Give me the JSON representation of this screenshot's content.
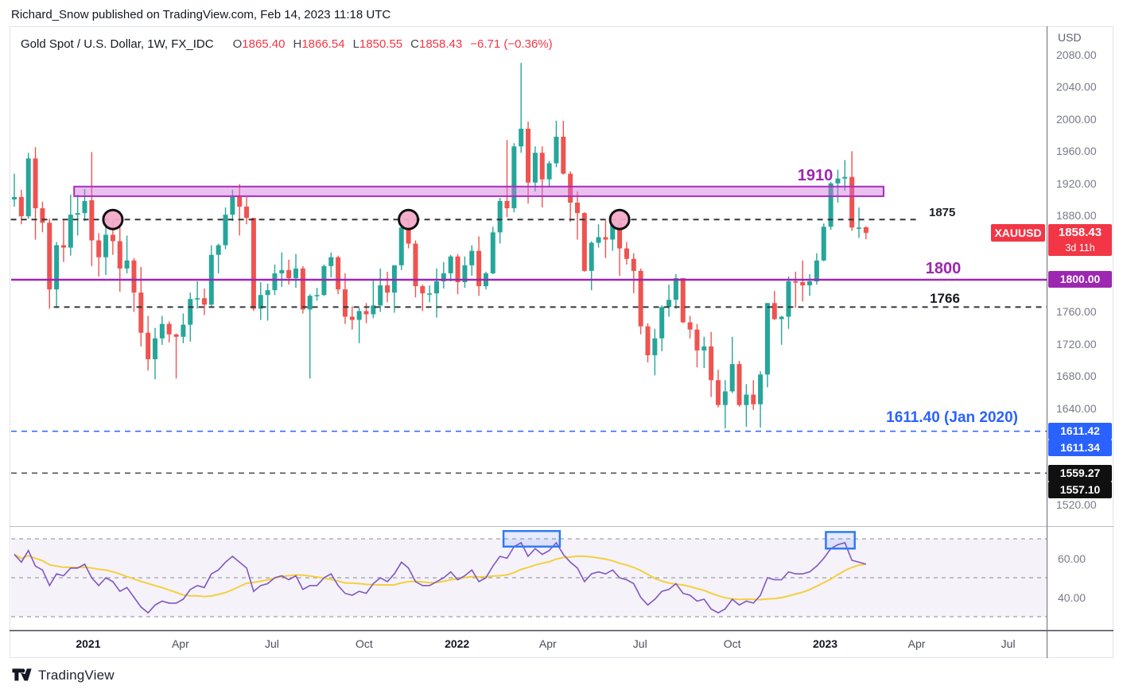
{
  "header": {
    "published_line": "Richard_Snow published on TradingView.com, Feb 14, 2023 11:18 UTC"
  },
  "footer": {
    "brand": "TradingView"
  },
  "legend": {
    "symbol_title": "Gold Spot / U.S. Dollar, 1W, FX_IDC",
    "o_label": "O",
    "open": "1865.40",
    "h_label": "H",
    "high": "1866.54",
    "l_label": "L",
    "low": "1850.55",
    "c_label": "C",
    "close": "1858.43",
    "change": "−6.71 (−0.36%)"
  },
  "annotations": {
    "zone_label": "1910",
    "resistance_label": "1875",
    "support_label": "1800",
    "support2_label": "1766",
    "blue_label": "1611.40 (Jan 2020)"
  },
  "badges": {
    "symbol": "XAUUSD",
    "last_price": "1858.43",
    "countdown": "3d 11h",
    "level_1800": "1800.00",
    "blue_1": "1611.42",
    "blue_2": "1611.34",
    "black_1": "1559.27",
    "black_2": "1557.10"
  },
  "axis": {
    "currency": "USD",
    "price_ticks": [
      {
        "label": "2080.00",
        "price": 2080
      },
      {
        "label": "2040.00",
        "price": 2040
      },
      {
        "label": "2000.00",
        "price": 2000
      },
      {
        "label": "1960.00",
        "price": 1960
      },
      {
        "label": "1920.00",
        "price": 1920
      },
      {
        "label": "1880.00",
        "price": 1880
      },
      {
        "label": "1760.00",
        "price": 1760
      },
      {
        "label": "1720.00",
        "price": 1720
      },
      {
        "label": "1680.00",
        "price": 1680
      },
      {
        "label": "1640.00",
        "price": 1640
      },
      {
        "label": "1520.00",
        "price": 1520
      }
    ],
    "rsi_ticks": [
      "60.00",
      "40.00"
    ],
    "time_ticks": [
      {
        "label": "2021",
        "week_index": 10.5,
        "bold": true
      },
      {
        "label": "Apr",
        "week_index": 23.6,
        "bold": false
      },
      {
        "label": "Jul",
        "week_index": 36.6,
        "bold": false
      },
      {
        "label": "Oct",
        "week_index": 49.7,
        "bold": false
      },
      {
        "label": "2022",
        "week_index": 62.9,
        "bold": true
      },
      {
        "label": "Apr",
        "week_index": 75.8,
        "bold": false
      },
      {
        "label": "Jul",
        "week_index": 88.9,
        "bold": false
      },
      {
        "label": "Oct",
        "week_index": 102.0,
        "bold": false
      },
      {
        "label": "2023",
        "week_index": 115.2,
        "bold": true
      },
      {
        "label": "Apr",
        "week_index": 128.2,
        "bold": false
      },
      {
        "label": "Jul",
        "week_index": 141.2,
        "bold": false
      }
    ]
  },
  "colors": {
    "up": "#26a69a",
    "down": "#ef5350",
    "widget_border": "#e0e3eb",
    "pane_separator": "#b8bcc6",
    "pane_separator_dark": "#434651",
    "axis_line": "#6a6d78",
    "zone_fill": "rgba(208,116,218,0.45)",
    "zone_border": "#aa2cc0",
    "circle_fill": "#f2abc9",
    "rsi_line": "#7e57c2",
    "rsi_ma": "#f3d03e",
    "rsi_band_fill": "rgba(126,87,194,0.08)",
    "rsi_level": "#868a97",
    "box_fill": "rgba(41,98,255,0.12)",
    "box_border": "#3179f3",
    "badge_red": "#f23645",
    "badge_purple": "#9c27b0",
    "badge_blue": "#2962ff",
    "badge_black": "#101010"
  },
  "chart_data": [
    {
      "type": "candlestick",
      "title": "Gold Spot / U.S. Dollar",
      "symbol": "XAUUSD",
      "exchange": "FX_IDC",
      "timeframe": "1W",
      "start_date": "2020-10-19",
      "interval": "1 week",
      "ylim": [
        1500,
        2095
      ],
      "last_close": 1858.43,
      "ohlc": [
        [
          1900,
          1932,
          1891,
          1903
        ],
        [
          1903,
          1912,
          1869,
          1879
        ],
        [
          1879,
          1958,
          1876,
          1951
        ],
        [
          1951,
          1965,
          1850,
          1889
        ],
        [
          1889,
          1897,
          1859,
          1871
        ],
        [
          1871,
          1876,
          1764,
          1788
        ],
        [
          1788,
          1847,
          1765,
          1843
        ],
        [
          1843,
          1875,
          1822,
          1840
        ],
        [
          1840,
          1906,
          1830,
          1881
        ],
        [
          1881,
          1906,
          1855,
          1883
        ],
        [
          1883,
          1913,
          1873,
          1898
        ],
        [
          1899,
          1959,
          1817,
          1849
        ],
        [
          1849,
          1858,
          1804,
          1828
        ],
        [
          1828,
          1875,
          1806,
          1856
        ],
        [
          1856,
          1878,
          1831,
          1848
        ],
        [
          1848,
          1866,
          1785,
          1814
        ],
        [
          1814,
          1855,
          1808,
          1824
        ],
        [
          1824,
          1827,
          1760,
          1784
        ],
        [
          1784,
          1816,
          1717,
          1734
        ],
        [
          1734,
          1755,
          1687,
          1701
        ],
        [
          1701,
          1740,
          1676,
          1727
        ],
        [
          1727,
          1755,
          1719,
          1745
        ],
        [
          1745,
          1748,
          1722,
          1732
        ],
        [
          1732,
          1733,
          1677,
          1729
        ],
        [
          1729,
          1758,
          1721,
          1744
        ],
        [
          1744,
          1784,
          1723,
          1776
        ],
        [
          1776,
          1798,
          1764,
          1777
        ],
        [
          1777,
          1789,
          1756,
          1769
        ],
        [
          1769,
          1843,
          1765,
          1831
        ],
        [
          1831,
          1845,
          1808,
          1843
        ],
        [
          1843,
          1890,
          1838,
          1881
        ],
        [
          1881,
          1912,
          1873,
          1903
        ],
        [
          1903,
          1919,
          1855,
          1891
        ],
        [
          1891,
          1903,
          1869,
          1877
        ],
        [
          1877,
          1877,
          1761,
          1764
        ],
        [
          1764,
          1797,
          1750,
          1781
        ],
        [
          1781,
          1795,
          1749,
          1787
        ],
        [
          1787,
          1819,
          1781,
          1808
        ],
        [
          1808,
          1834,
          1791,
          1812
        ],
        [
          1812,
          1825,
          1794,
          1802
        ],
        [
          1802,
          1832,
          1790,
          1814
        ],
        [
          1814,
          1817,
          1758,
          1763
        ],
        [
          1763,
          1782,
          1677,
          1780
        ],
        [
          1780,
          1790,
          1774,
          1781
        ],
        [
          1781,
          1819,
          1780,
          1817
        ],
        [
          1817,
          1834,
          1803,
          1828
        ],
        [
          1828,
          1830,
          1782,
          1788
        ],
        [
          1788,
          1808,
          1745,
          1754
        ],
        [
          1754,
          1767,
          1738,
          1750
        ],
        [
          1750,
          1765,
          1721,
          1761
        ],
        [
          1761,
          1771,
          1746,
          1757
        ],
        [
          1757,
          1801,
          1752,
          1768
        ],
        [
          1768,
          1814,
          1760,
          1793
        ],
        [
          1793,
          1810,
          1772,
          1784
        ],
        [
          1784,
          1818,
          1759,
          1818
        ],
        [
          1818,
          1868,
          1812,
          1865
        ],
        [
          1865,
          1877,
          1839,
          1845
        ],
        [
          1845,
          1849,
          1778,
          1792
        ],
        [
          1792,
          1794,
          1761,
          1783
        ],
        [
          1783,
          1793,
          1772,
          1783
        ],
        [
          1783,
          1814,
          1753,
          1798
        ],
        [
          1798,
          1822,
          1789,
          1808
        ],
        [
          1808,
          1831,
          1798,
          1829
        ],
        [
          1829,
          1832,
          1782,
          1797
        ],
        [
          1797,
          1829,
          1790,
          1818
        ],
        [
          1818,
          1843,
          1805,
          1836
        ],
        [
          1836,
          1854,
          1780,
          1792
        ],
        [
          1792,
          1810,
          1788,
          1808
        ],
        [
          1808,
          1866,
          1807,
          1859
        ],
        [
          1859,
          1902,
          1845,
          1898
        ],
        [
          1898,
          1974,
          1878,
          1889
        ],
        [
          1889,
          1970,
          1884,
          1966
        ],
        [
          1966,
          2070,
          1958,
          1988
        ],
        [
          1988,
          1997,
          1895,
          1921
        ],
        [
          1921,
          1966,
          1910,
          1958
        ],
        [
          1958,
          1966,
          1890,
          1925
        ],
        [
          1925,
          1948,
          1915,
          1945
        ],
        [
          1945,
          1998,
          1940,
          1978
        ],
        [
          1978,
          1998,
          1931,
          1932
        ],
        [
          1932,
          1935,
          1872,
          1896
        ],
        [
          1896,
          1910,
          1850,
          1883
        ],
        [
          1883,
          1884,
          1810,
          1811
        ],
        [
          1811,
          1848,
          1787,
          1846
        ],
        [
          1846,
          1869,
          1840,
          1853
        ],
        [
          1853,
          1874,
          1827,
          1850
        ],
        [
          1850,
          1878,
          1836,
          1871
        ],
        [
          1871,
          1879,
          1805,
          1839
        ],
        [
          1839,
          1847,
          1819,
          1826
        ],
        [
          1826,
          1833,
          1783,
          1811
        ],
        [
          1811,
          1814,
          1732,
          1742
        ],
        [
          1742,
          1746,
          1697,
          1706
        ],
        [
          1706,
          1739,
          1681,
          1727
        ],
        [
          1727,
          1768,
          1711,
          1766
        ],
        [
          1766,
          1794,
          1754,
          1775
        ],
        [
          1775,
          1807,
          1764,
          1802
        ],
        [
          1802,
          1802,
          1746,
          1747
        ],
        [
          1747,
          1755,
          1727,
          1738
        ],
        [
          1738,
          1745,
          1691,
          1712
        ],
        [
          1712,
          1729,
          1690,
          1717
        ],
        [
          1717,
          1735,
          1654,
          1675
        ],
        [
          1675,
          1688,
          1641,
          1644
        ],
        [
          1644,
          1675,
          1615,
          1661
        ],
        [
          1661,
          1729,
          1659,
          1695
        ],
        [
          1695,
          1699,
          1642,
          1644
        ],
        [
          1644,
          1670,
          1617,
          1657
        ],
        [
          1657,
          1675,
          1638,
          1645
        ],
        [
          1645,
          1686,
          1616,
          1682
        ],
        [
          1682,
          1771,
          1666,
          1771
        ],
        [
          1771,
          1786,
          1750,
          1751
        ],
        [
          1751,
          1755,
          1719,
          1754
        ],
        [
          1754,
          1804,
          1739,
          1798
        ],
        [
          1798,
          1810,
          1765,
          1797
        ],
        [
          1797,
          1824,
          1773,
          1793
        ],
        [
          1793,
          1807,
          1780,
          1798
        ],
        [
          1798,
          1833,
          1794,
          1824
        ],
        [
          1824,
          1870,
          1823,
          1866
        ],
        [
          1866,
          1922,
          1862,
          1920
        ],
        [
          1920,
          1937,
          1896,
          1926
        ],
        [
          1926,
          1949,
          1911,
          1928
        ],
        [
          1928,
          1960,
          1861,
          1865
        ],
        [
          1865,
          1890,
          1852,
          1865
        ],
        [
          1865.4,
          1866.54,
          1850.55,
          1858.43
        ]
      ],
      "levels": [
        {
          "price": 1875,
          "label": "1875",
          "style": "dashed",
          "color": "#33363d",
          "width": 2,
          "from_week": -0.5,
          "to_week": 128.5
        },
        {
          "price": 1800,
          "label": "1800",
          "style": "solid",
          "color": "#9c27b0",
          "width": 2.5
        },
        {
          "price": 1766,
          "label": "1766",
          "style": "dashed",
          "color": "#33363d",
          "width": 2,
          "from_week": 5.6
        },
        {
          "price": 1611.4,
          "label": "1611.40 (Jan 2020)",
          "style": "dashed",
          "color": "#2962ff",
          "width": 1.6
        },
        {
          "price": 1559.3,
          "label": "",
          "style": "dashed",
          "color": "#50535e",
          "width": 1.6
        }
      ],
      "zone": {
        "label": "1910",
        "price_top": 1916,
        "price_bottom": 1904,
        "from_week": 8.5,
        "to_week": 123.5
      },
      "circles": [
        {
          "week_index": 14,
          "price": 1875
        },
        {
          "week_index": 56,
          "price": 1875
        },
        {
          "week_index": 86,
          "price": 1875
        }
      ]
    },
    {
      "type": "line",
      "name": "RSI",
      "ylim": [
        20,
        80
      ],
      "levels": [
        70,
        50,
        30
      ],
      "ma_period": 14,
      "series": [
        {
          "name": "RSI",
          "values": [
            62,
            58,
            64,
            56,
            54,
            46,
            52,
            51,
            55,
            55,
            57,
            50,
            46,
            50,
            48,
            43,
            45,
            40,
            35,
            32,
            36,
            38,
            37,
            37,
            39,
            44,
            46,
            45,
            52,
            54,
            58,
            61,
            58,
            55,
            43,
            46,
            47,
            50,
            51,
            49,
            51,
            44,
            46,
            46,
            50,
            52,
            46,
            42,
            41,
            43,
            42,
            47,
            50,
            48,
            52,
            58,
            55,
            48,
            46,
            46,
            48,
            50,
            53,
            49,
            51,
            54,
            48,
            50,
            56,
            61,
            60,
            66,
            68,
            61,
            65,
            62,
            64,
            68,
            62,
            58,
            55,
            48,
            52,
            53,
            52,
            54,
            50,
            49,
            47,
            40,
            36,
            39,
            43,
            44,
            47,
            42,
            41,
            38,
            39,
            34,
            32,
            34,
            39,
            36,
            38,
            37,
            41,
            50,
            49,
            49,
            53,
            52,
            52,
            53,
            56,
            60,
            65,
            67,
            68,
            59,
            58,
            57
          ]
        },
        {
          "name": "RSI-based MA",
          "derived": "SMA(14) of RSI series"
        }
      ],
      "boxes": [
        {
          "from_week": 69.5,
          "to_week": 77.5,
          "rsi_top": 74,
          "rsi_bottom": 66
        },
        {
          "from_week": 115.3,
          "to_week": 119.4,
          "rsi_top": 73.5,
          "rsi_bottom": 65
        }
      ]
    }
  ]
}
